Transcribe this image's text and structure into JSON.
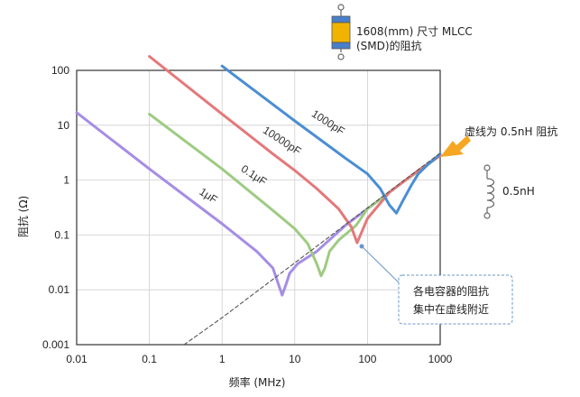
{
  "chart_data": {
    "type": "line",
    "xscale": "log",
    "yscale": "log",
    "xlim": [
      0.01,
      1000
    ],
    "ylim": [
      0.001,
      100
    ],
    "xlabel": "频率 (MHz)",
    "ylabel": "阻抗 (Ω)",
    "x_ticks": [
      "0.01",
      "0.1",
      "1",
      "10",
      "100",
      "1000"
    ],
    "y_ticks": [
      "0.001",
      "0.01",
      "0.1",
      "1",
      "10",
      "100"
    ],
    "grid": true,
    "series": [
      {
        "name": "1μF",
        "color": "#a58de6",
        "points": [
          [
            0.01,
            17
          ],
          [
            0.1,
            1.6
          ],
          [
            1,
            0.16
          ],
          [
            3,
            0.05
          ],
          [
            5,
            0.025
          ],
          [
            6.7,
            0.008
          ],
          [
            7.5,
            0.012
          ],
          [
            8.5,
            0.02
          ],
          [
            11,
            0.03
          ],
          [
            20,
            0.05
          ],
          [
            50,
            0.15
          ],
          [
            100,
            0.3
          ],
          [
            300,
            0.9
          ],
          [
            1000,
            2.8
          ]
        ]
      },
      {
        "name": "0.1μF",
        "color": "#9ecb82",
        "points": [
          [
            0.1,
            16
          ],
          [
            1,
            1.6
          ],
          [
            5,
            0.28
          ],
          [
            10,
            0.13
          ],
          [
            15,
            0.07
          ],
          [
            20,
            0.03
          ],
          [
            23,
            0.018
          ],
          [
            26,
            0.025
          ],
          [
            30,
            0.05
          ],
          [
            40,
            0.08
          ],
          [
            70,
            0.15
          ],
          [
            100,
            0.3
          ],
          [
            300,
            0.9
          ],
          [
            1000,
            2.8
          ]
        ]
      },
      {
        "name": "10000pF",
        "color": "#e4787a",
        "points": [
          [
            0.1,
            180
          ],
          [
            1,
            16
          ],
          [
            5,
            3.0
          ],
          [
            10,
            1.5
          ],
          [
            20,
            0.7
          ],
          [
            40,
            0.3
          ],
          [
            60,
            0.14
          ],
          [
            72,
            0.072
          ],
          [
            80,
            0.1
          ],
          [
            100,
            0.2
          ],
          [
            200,
            0.6
          ],
          [
            500,
            1.5
          ],
          [
            1000,
            2.8
          ]
        ]
      },
      {
        "name": "1000pF",
        "color": "#4a8ed4",
        "points": [
          [
            1,
            120
          ],
          [
            10,
            12
          ],
          [
            50,
            2.5
          ],
          [
            100,
            1.3
          ],
          [
            150,
            0.7
          ],
          [
            200,
            0.35
          ],
          [
            250,
            0.25
          ],
          [
            300,
            0.4
          ],
          [
            400,
            0.8
          ],
          [
            500,
            1.3
          ],
          [
            700,
            2.0
          ],
          [
            1000,
            3.0
          ]
        ]
      },
      {
        "name": "0.5nH",
        "style": "dashed",
        "color": "#555555",
        "points": [
          [
            0.3,
            0.001
          ],
          [
            1,
            0.0031
          ],
          [
            10,
            0.031
          ],
          [
            100,
            0.31
          ],
          [
            1000,
            3.1
          ]
        ]
      }
    ],
    "annotations": {
      "component_title_line1": "1608(mm) 尺寸 MLCC",
      "component_title_line2": "(SMD)的阻抗",
      "dashed_line_note": "虚线为 0.5nH 阻抗",
      "inductor_label": "0.5nH",
      "callout_line1": "各电容器的阻抗",
      "callout_line2": "集中在虚线附近"
    },
    "colors": {
      "arrow": "#f5a623",
      "capacitor_body": "#f0b400",
      "capacitor_caps": "#4a7fc9",
      "callout_border": "#6a95c8"
    }
  }
}
